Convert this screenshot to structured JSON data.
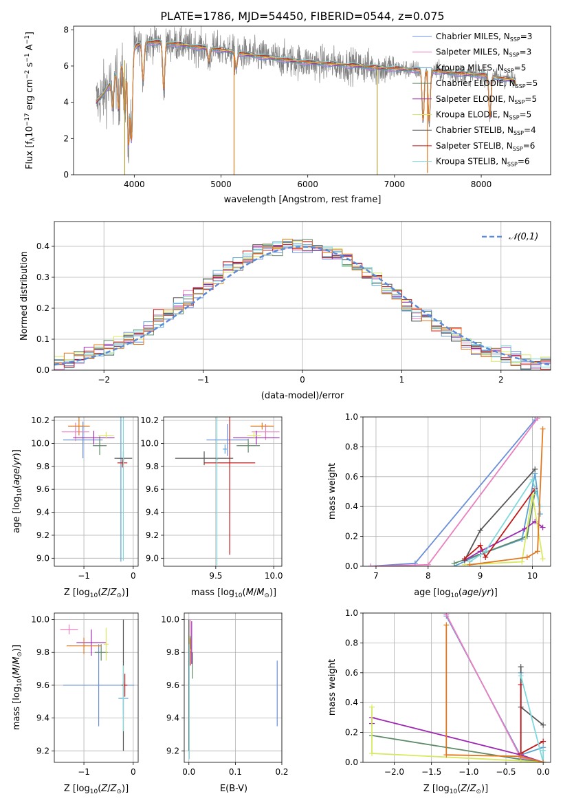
{
  "figure_title": "PLATE=1786, MJD=54450, FIBERID=0544, z=0.075",
  "series_colors": [
    "#6a8fd8",
    "#e87fbf",
    "#5ba3d0",
    "#5f8a68",
    "#9c27b0",
    "#d8e860",
    "#555555",
    "#c01818",
    "#7fd8dc"
  ],
  "extra_colors": {
    "orange": "#e07820",
    "gray": "#808080",
    "legend_dash": "#5b8bd6"
  },
  "chart_data": [
    {
      "id": "spectrum",
      "type": "line",
      "title": "",
      "xlabel": "wavelength [Angstrom, rest frame]",
      "ylabel": "Flux [f_λ10^-17 erg cm^-2 s^-1 A^-1]",
      "xlim": [
        3300,
        8800
      ],
      "ylim": [
        0,
        8.2
      ],
      "xticks": [
        4000,
        5000,
        6000,
        7000,
        8000
      ],
      "yticks": [
        0,
        2,
        4,
        6,
        8
      ],
      "grid": false,
      "legend_placement": "top-right",
      "legend": [
        {
          "label": "Chabrier MILES, N_SSP=3"
        },
        {
          "label": "Salpeter MILES, N_SSP=3"
        },
        {
          "label": "Kroupa MILES, N_SSP=5"
        },
        {
          "label": "Chabrier ELODIE, N_SSP=5"
        },
        {
          "label": "Salpeter ELODIE, N_SSP=5"
        },
        {
          "label": "Kroupa ELODIE, N_SSP=5"
        },
        {
          "label": "Chabrier STELIB, N_SSP=4"
        },
        {
          "label": "Salpeter STELIB, N_SSP=6"
        },
        {
          "label": "Kroupa STELIB, N_SSP=6"
        }
      ],
      "continuum": {
        "x": [
          3560,
          3650,
          3800,
          3900,
          4000,
          4100,
          4300,
          4500,
          4800,
          5000,
          5200,
          5500,
          5800,
          6000,
          6300,
          6600,
          6800,
          7000,
          7200,
          7400,
          7600,
          7800,
          8000,
          8200,
          8400
        ],
        "y": [
          4.0,
          4.5,
          5.6,
          6.4,
          7.0,
          7.3,
          7.3,
          7.2,
          7.0,
          6.9,
          6.7,
          6.5,
          6.3,
          6.2,
          6.1,
          6.0,
          5.9,
          5.85,
          5.8,
          5.75,
          5.65,
          5.55,
          5.5,
          5.35,
          5.2
        ]
      },
      "absorption_features": [
        {
          "x": 3750,
          "y": 3.7
        },
        {
          "x": 3820,
          "y": 3.6
        },
        {
          "x": 3889,
          "y": 3.4
        },
        {
          "x": 3934,
          "y": 1.7
        },
        {
          "x": 3968,
          "y": 2.0
        },
        {
          "x": 4102,
          "y": 5.2
        },
        {
          "x": 4340,
          "y": 4.7
        },
        {
          "x": 4861,
          "y": 6.2
        },
        {
          "x": 5175,
          "y": 5.9
        },
        {
          "x": 7330,
          "y": 3.0
        },
        {
          "x": 7400,
          "y": 2.9
        },
        {
          "x": 8100,
          "y": 3.2
        },
        {
          "x": 8420,
          "y": 3.8
        }
      ],
      "spikes": [
        {
          "x": 3890,
          "y": 0.0
        },
        {
          "x": 5150,
          "y": 0.0
        },
        {
          "x": 6800,
          "y": 0.0
        },
        {
          "x": 7380,
          "y": 0.1
        }
      ]
    },
    {
      "id": "residuals",
      "type": "histogram",
      "title": "",
      "xlabel": "(data-model)/error",
      "ylabel": "Normed distribution",
      "xlim": [
        -2.5,
        2.5
      ],
      "ylim": [
        0,
        0.48
      ],
      "xticks": [
        -2,
        -1,
        0,
        1,
        2
      ],
      "yticks": [
        0.0,
        0.1,
        0.2,
        0.3,
        0.4
      ],
      "grid": true,
      "legend_placement": "top-right",
      "legend": [
        {
          "label": "𝒩(0,1)"
        }
      ],
      "reference_curve": {
        "name": "𝒩(0,1)",
        "mean": 0,
        "sigma": 1
      },
      "bin_width": 0.1
    },
    {
      "id": "age_vs_Z",
      "type": "scatter",
      "xlabel": "Z [log10(Z/Z_⊙)]",
      "ylabel": "age  [log10(age/yr)]",
      "xlim": [
        -1.6,
        0.1
      ],
      "ylim": [
        8.93,
        10.23
      ],
      "xticks": [
        -1,
        0
      ],
      "yticks": [
        9.0,
        9.2,
        9.4,
        9.6,
        9.8,
        10.0,
        10.2
      ],
      "grid": true,
      "points": [
        {
          "x": -1.02,
          "y": 10.03,
          "xerr": 0.4,
          "yerr": 0.16
        },
        {
          "x": -1.17,
          "y": 10.1,
          "xerr": 0.28,
          "yerr": 0.08
        },
        {
          "x": -0.25,
          "y": 9.87,
          "xerr": 0.06,
          "yerr": 0.9
        },
        {
          "x": -0.68,
          "y": 9.98,
          "xerr": 0.14,
          "yerr": 0.08
        },
        {
          "x": -0.8,
          "y": 10.05,
          "xerr": 0.42,
          "yerr": 0.06
        },
        {
          "x": -0.55,
          "y": 10.07,
          "xerr": 0.16,
          "yerr": 0.03
        },
        {
          "x": -0.2,
          "y": 9.87,
          "xerr": 0.18,
          "yerr": 0.06
        },
        {
          "x": -0.22,
          "y": 9.83,
          "xerr": 0.1,
          "yerr": 0.04
        },
        {
          "x": -0.2,
          "y": 9.86,
          "xerr": 0.02,
          "yerr": 0.88
        }
      ],
      "extra_points": [
        {
          "x": -1.1,
          "y": 10.15,
          "xerr": 0.22,
          "yerr": 0.08,
          "color": "orange"
        }
      ]
    },
    {
      "id": "age_vs_mass",
      "type": "scatter",
      "xlabel": "mass [log10(M/M_⊙)]",
      "ylabel": "",
      "xlim": [
        9.05,
        10.07
      ],
      "ylim": [
        8.93,
        10.23
      ],
      "xticks": [
        9.5,
        10.0
      ],
      "yticks": [
        9.0,
        9.2,
        9.4,
        9.6,
        9.8,
        10.0,
        10.2
      ],
      "grid": true,
      "points": [
        {
          "x": 9.6,
          "y": 10.03,
          "xerr": 0.18,
          "yerr": 0.14
        },
        {
          "x": 9.93,
          "y": 10.1,
          "xerr": 0.12,
          "yerr": 0.07
        },
        {
          "x": 9.58,
          "y": 9.95,
          "xerr": 0.02,
          "yerr": 0.04
        },
        {
          "x": 9.78,
          "y": 9.98,
          "xerr": 0.1,
          "yerr": 0.06
        },
        {
          "x": 9.85,
          "y": 10.05,
          "xerr": 0.2,
          "yerr": 0.06
        },
        {
          "x": 9.83,
          "y": 10.07,
          "xerr": 0.06,
          "yerr": 0.03
        },
        {
          "x": 9.4,
          "y": 9.87,
          "xerr": 0.25,
          "yerr": 0.06
        },
        {
          "x": 9.62,
          "y": 9.83,
          "xerr": 0.22,
          "yerr": 0.8
        },
        {
          "x": 9.51,
          "y": 9.86,
          "xerr": 0.01,
          "yerr": 0.92
        }
      ],
      "extra_points": [
        {
          "x": 9.9,
          "y": 10.15,
          "xerr": 0.1,
          "yerr": 0.03,
          "color": "orange"
        }
      ]
    },
    {
      "id": "massweight_vs_age",
      "type": "line",
      "xlabel": "age  [log10(age/yr)]",
      "ylabel": "mass weight",
      "xlim": [
        6.75,
        10.35
      ],
      "ylim": [
        0,
        1.0
      ],
      "xticks": [
        7,
        8,
        9,
        10
      ],
      "yticks": [
        0.0,
        0.2,
        0.4,
        0.6,
        0.8,
        1.0
      ],
      "grid": true,
      "series": [
        {
          "x": [
            6.9,
            7.75,
            10.05
          ],
          "y": [
            0.0,
            0.02,
            0.98
          ]
        },
        {
          "x": [
            6.9,
            8.0,
            10.1
          ],
          "y": [
            0.0,
            0.01,
            0.99
          ]
        },
        {
          "x": [
            8.5,
            9.0,
            9.8,
            10.05,
            10.15
          ],
          "y": [
            0.0,
            0.08,
            0.18,
            0.62,
            0.35
          ]
        },
        {
          "x": [
            8.5,
            9.0,
            9.9,
            10.05
          ],
          "y": [
            0.02,
            0.08,
            0.2,
            0.5
          ]
        },
        {
          "x": [
            8.7,
            9.0,
            9.85,
            10.05,
            10.2
          ],
          "y": [
            0.04,
            0.1,
            0.25,
            0.3,
            0.26
          ]
        },
        {
          "x": [
            8.7,
            9.8,
            10.0,
            10.2
          ],
          "y": [
            0.01,
            0.03,
            0.48,
            0.05
          ]
        },
        {
          "x": [
            8.7,
            9.0,
            10.05
          ],
          "y": [
            0.04,
            0.24,
            0.65
          ]
        },
        {
          "x": [
            8.7,
            9.0,
            9.1,
            10.05
          ],
          "y": [
            0.05,
            0.14,
            0.06,
            0.52
          ]
        },
        {
          "x": [
            8.8,
            9.1,
            10.0,
            10.15
          ],
          "y": [
            0.03,
            0.1,
            0.58,
            0.4
          ]
        }
      ],
      "extra_series": [
        {
          "x": [
            8.8,
            9.9,
            10.1,
            10.2
          ],
          "y": [
            0.01,
            0.06,
            0.1,
            0.92
          ],
          "color": "orange"
        }
      ]
    },
    {
      "id": "mass_vs_Z",
      "type": "scatter",
      "xlabel": "Z [log10(Z/Z_⊙)]",
      "ylabel": "mass [log10(M/M_⊙)]",
      "xlim": [
        -1.6,
        0.1
      ],
      "ylim": [
        9.13,
        10.04
      ],
      "xticks": [
        -1,
        0
      ],
      "yticks": [
        9.2,
        9.4,
        9.6,
        9.8,
        10.0
      ],
      "grid": true,
      "points": [
        {
          "x": -0.7,
          "y": 9.6,
          "xerr": 0.72,
          "yerr": 0.25
        },
        {
          "x": -1.3,
          "y": 9.94,
          "xerr": 0.18,
          "yerr": 0.03
        },
        {
          "x": -0.2,
          "y": 9.52,
          "xerr": 0.1,
          "yerr": 0.1
        },
        {
          "x": -0.65,
          "y": 9.8,
          "xerr": 0.13,
          "yerr": 0.05
        },
        {
          "x": -0.85,
          "y": 9.86,
          "xerr": 0.3,
          "yerr": 0.08
        },
        {
          "x": -0.55,
          "y": 9.85,
          "xerr": 0.05,
          "yerr": 0.1
        },
        {
          "x": -0.2,
          "y": 9.6,
          "xerr": 0.04,
          "yerr": 0.4
        },
        {
          "x": -0.17,
          "y": 9.6,
          "xerr": 0.05,
          "yerr": 0.07
        },
        {
          "x": -0.2,
          "y": 9.52,
          "xerr": 0.02,
          "yerr": 0.2
        }
      ],
      "extra_points": [
        {
          "x": -1.0,
          "y": 9.84,
          "xerr": 0.35,
          "yerr": 0.05,
          "color": "orange"
        }
      ]
    },
    {
      "id": "mass_vs_EBV",
      "type": "scatter",
      "xlabel": "E(B-V)",
      "ylabel": "",
      "xlim": [
        -0.01,
        0.2
      ],
      "ylim": [
        9.13,
        10.04
      ],
      "xticks": [
        0.0,
        0.1,
        0.2
      ],
      "yticks": [
        9.2,
        9.4,
        9.6,
        9.8,
        10.0
      ],
      "grid": true,
      "points": [
        {
          "x": 0.19,
          "y": 9.55,
          "xerr": 0.0,
          "yerr": 0.2
        },
        {
          "x": 0.003,
          "y": 9.93,
          "xerr": 0.0,
          "yerr": 0.07
        },
        {
          "x": 0.004,
          "y": 9.86,
          "xerr": 0.0,
          "yerr": 0.04
        },
        {
          "x": 0.008,
          "y": 9.72,
          "xerr": 0.0,
          "yerr": 0.08
        },
        {
          "x": 0.006,
          "y": 9.86,
          "xerr": 0.0,
          "yerr": 0.13
        },
        {
          "x": 0.002,
          "y": 9.85,
          "xerr": 0.0,
          "yerr": 0.05
        },
        {
          "x": 0.0,
          "y": 9.6,
          "xerr": 0.0,
          "yerr": 0.4
        },
        {
          "x": 0.003,
          "y": 9.8,
          "xerr": 0.0,
          "yerr": 0.08
        },
        {
          "x": 0.001,
          "y": 9.5,
          "xerr": 0.0,
          "yerr": 0.35
        }
      ],
      "extra_points": [
        {
          "x": 0.003,
          "y": 9.85,
          "xerr": 0.0,
          "yerr": 0.04,
          "color": "orange"
        }
      ]
    },
    {
      "id": "massweight_vs_Z",
      "type": "line",
      "xlabel": "Z [log10(Z/Z_⊙)]",
      "ylabel": "mass weight",
      "xlim": [
        -2.42,
        0.1
      ],
      "ylim": [
        0,
        1.0
      ],
      "xticks": [
        -2.0,
        -1.5,
        -1.0,
        -0.5,
        0.0
      ],
      "yticks": [
        0.0,
        0.2,
        0.4,
        0.6,
        0.8,
        1.0
      ],
      "grid": true,
      "series": [
        {
          "x": [
            -1.3,
            -0.3,
            0.0
          ],
          "y": [
            0.98,
            0.04,
            0.0
          ]
        },
        {
          "x": [
            -1.3,
            -0.3,
            0.0
          ],
          "y": [
            0.99,
            0.03,
            0.0
          ]
        },
        {
          "x": [
            -0.3,
            -0.3,
            0.0
          ],
          "y": [
            0.6,
            0.05,
            0.1
          ]
        },
        {
          "x": [
            -2.3,
            -0.3,
            0.0
          ],
          "y": [
            0.18,
            0.02,
            0.0
          ]
        },
        {
          "x": [
            -2.3,
            -2.3,
            -0.3,
            0.0
          ],
          "y": [
            0.26,
            0.3,
            0.05,
            0.0
          ]
        },
        {
          "x": [
            -2.3,
            -2.3,
            -0.3,
            0.0
          ],
          "y": [
            0.37,
            0.06,
            0.01,
            0.0
          ]
        },
        {
          "x": [
            -0.3,
            -0.3,
            0.0
          ],
          "y": [
            0.64,
            0.37,
            0.25
          ]
        },
        {
          "x": [
            -0.3,
            -0.3,
            0.0
          ],
          "y": [
            0.52,
            0.06,
            0.14
          ]
        },
        {
          "x": [
            -0.3,
            0.0,
            0.0
          ],
          "y": [
            0.58,
            0.0,
            0.08
          ]
        }
      ],
      "extra_series": [
        {
          "x": [
            -1.3,
            -1.3,
            -0.3,
            0.0
          ],
          "y": [
            0.92,
            0.05,
            0.04,
            0.0
          ],
          "color": "orange"
        }
      ]
    }
  ]
}
